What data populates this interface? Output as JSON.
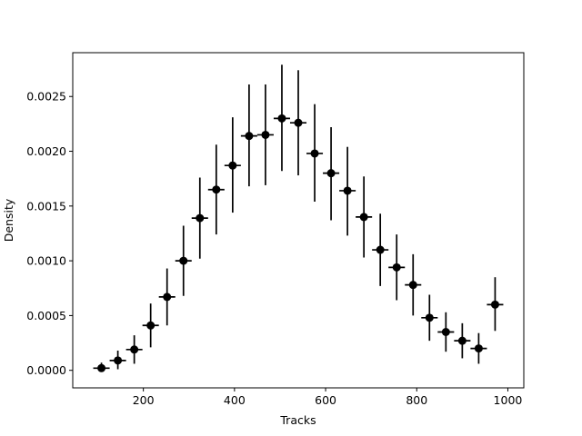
{
  "chart_data": {
    "type": "scatter",
    "title": "",
    "xlabel": "Tracks",
    "ylabel": "Density",
    "xlim": [
      45,
      1035
    ],
    "ylim": [
      -0.00016,
      0.0029
    ],
    "xticks": [
      200,
      400,
      600,
      800,
      1000
    ],
    "yticks": [
      0.0,
      0.0005,
      0.001,
      0.0015,
      0.002,
      0.0025
    ],
    "xtick_labels": [
      "200",
      "400",
      "600",
      "800",
      "1000"
    ],
    "ytick_labels": [
      "0.0000",
      "0.0005",
      "0.0010",
      "0.0015",
      "0.0020",
      "0.0025"
    ],
    "grid": false,
    "legend": false,
    "marker_color": "#000000",
    "points": [
      {
        "x": 108,
        "y": 2e-05,
        "xerr": 18,
        "yerr_low": 2e-05,
        "yerr_high": 5e-05
      },
      {
        "x": 144,
        "y": 9e-05,
        "xerr": 18,
        "yerr_low": 8e-05,
        "yerr_high": 9e-05
      },
      {
        "x": 180,
        "y": 0.00019,
        "xerr": 18,
        "yerr_low": 0.00013,
        "yerr_high": 0.00013
      },
      {
        "x": 216,
        "y": 0.00041,
        "xerr": 18,
        "yerr_low": 0.0002,
        "yerr_high": 0.0002
      },
      {
        "x": 252,
        "y": 0.00067,
        "xerr": 18,
        "yerr_low": 0.00026,
        "yerr_high": 0.00026
      },
      {
        "x": 288,
        "y": 0.001,
        "xerr": 18,
        "yerr_low": 0.00032,
        "yerr_high": 0.00032
      },
      {
        "x": 324,
        "y": 0.00139,
        "xerr": 18,
        "yerr_low": 0.00037,
        "yerr_high": 0.00037
      },
      {
        "x": 360,
        "y": 0.00165,
        "xerr": 18,
        "yerr_low": 0.00041,
        "yerr_high": 0.00041
      },
      {
        "x": 396,
        "y": 0.00187,
        "xerr": 18,
        "yerr_low": 0.00043,
        "yerr_high": 0.00044
      },
      {
        "x": 432,
        "y": 0.00214,
        "xerr": 18,
        "yerr_low": 0.00046,
        "yerr_high": 0.00047
      },
      {
        "x": 468,
        "y": 0.00215,
        "xerr": 18,
        "yerr_low": 0.00046,
        "yerr_high": 0.00046
      },
      {
        "x": 504,
        "y": 0.0023,
        "xerr": 18,
        "yerr_low": 0.00048,
        "yerr_high": 0.00049
      },
      {
        "x": 540,
        "y": 0.00226,
        "xerr": 18,
        "yerr_low": 0.00048,
        "yerr_high": 0.00048
      },
      {
        "x": 576,
        "y": 0.00198,
        "xerr": 18,
        "yerr_low": 0.00044,
        "yerr_high": 0.00045
      },
      {
        "x": 612,
        "y": 0.0018,
        "xerr": 18,
        "yerr_low": 0.00043,
        "yerr_high": 0.00042
      },
      {
        "x": 648,
        "y": 0.00164,
        "xerr": 18,
        "yerr_low": 0.00041,
        "yerr_high": 0.0004
      },
      {
        "x": 684,
        "y": 0.0014,
        "xerr": 18,
        "yerr_low": 0.00037,
        "yerr_high": 0.00037
      },
      {
        "x": 720,
        "y": 0.0011,
        "xerr": 18,
        "yerr_low": 0.00033,
        "yerr_high": 0.00033
      },
      {
        "x": 756,
        "y": 0.00094,
        "xerr": 18,
        "yerr_low": 0.0003,
        "yerr_high": 0.0003
      },
      {
        "x": 792,
        "y": 0.00078,
        "xerr": 18,
        "yerr_low": 0.00028,
        "yerr_high": 0.00028
      },
      {
        "x": 828,
        "y": 0.00048,
        "xerr": 18,
        "yerr_low": 0.00021,
        "yerr_high": 0.00021
      },
      {
        "x": 864,
        "y": 0.00035,
        "xerr": 18,
        "yerr_low": 0.00018,
        "yerr_high": 0.00018
      },
      {
        "x": 900,
        "y": 0.00027,
        "xerr": 18,
        "yerr_low": 0.00016,
        "yerr_high": 0.00016
      },
      {
        "x": 936,
        "y": 0.0002,
        "xerr": 18,
        "yerr_low": 0.00014,
        "yerr_high": 0.00014
      },
      {
        "x": 972,
        "y": 0.0006,
        "xerr": 18,
        "yerr_low": 0.00024,
        "yerr_high": 0.00025
      }
    ]
  }
}
